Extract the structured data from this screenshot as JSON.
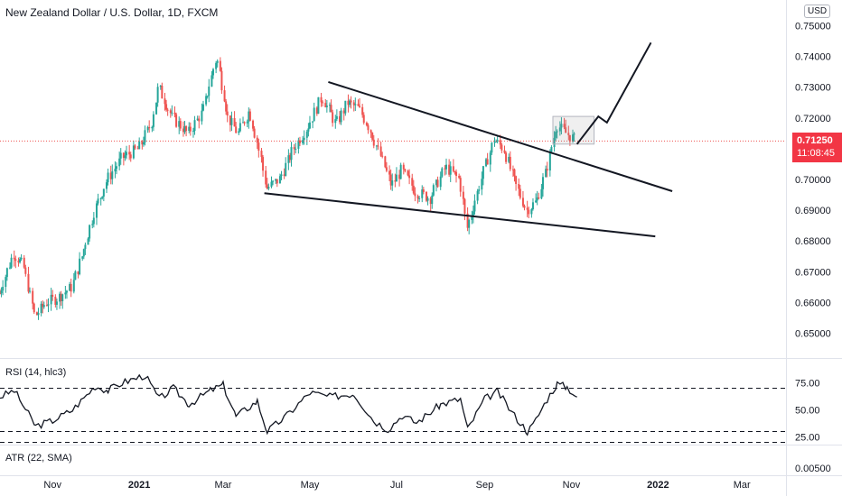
{
  "header": {
    "title": "New Zealand Dollar / U.S. Dollar, 1D, FXCM",
    "currency": "USD"
  },
  "current_price": {
    "price": "0.71250",
    "countdown": "11:08:45",
    "color": "#f23645"
  },
  "colors": {
    "up": "#26a69a",
    "down": "#ef5350",
    "line": "#131722",
    "price_line": "#ef5350"
  },
  "chart_data": [
    {
      "type": "candlestick",
      "title": "New Zealand Dollar / U.S. Dollar, 1D, FXCM",
      "y_ticks": [
        0.75,
        0.74,
        0.73,
        0.72,
        0.71,
        0.7,
        0.69,
        0.68,
        0.67,
        0.66,
        0.65
      ],
      "y_tick_labels": [
        "0.75000",
        "0.74000",
        "0.73000",
        "0.72000",
        "",
        "0.70000",
        "0.69000",
        "0.68000",
        "0.67000",
        "0.66000",
        "0.65000"
      ],
      "ylim": [
        0.6465,
        0.7525
      ],
      "x_ticks": [
        "Nov",
        "2021",
        "Mar",
        "May",
        "Jul",
        "Sep",
        "Nov",
        "2022",
        "Mar"
      ],
      "x_tick_dates": [
        "2020-11-01",
        "2021-01-01",
        "2021-03-01",
        "2021-05-01",
        "2021-07-01",
        "2021-09-01",
        "2021-11-01",
        "2022-01-01",
        "2022-03-01"
      ],
      "xlim": [
        "2020-09-25",
        "2022-04-01"
      ],
      "close_path": [
        [
          "2020-09-25",
          0.663
        ],
        [
          "2020-10-05",
          0.676
        ],
        [
          "2020-10-12",
          0.672
        ],
        [
          "2020-10-20",
          0.6555
        ],
        [
          "2020-10-28",
          0.66
        ],
        [
          "2020-11-05",
          0.6615
        ],
        [
          "2020-11-15",
          0.665
        ],
        [
          "2020-11-22",
          0.675
        ],
        [
          "2020-12-01",
          0.69
        ],
        [
          "2020-12-10",
          0.7
        ],
        [
          "2020-12-20",
          0.707
        ],
        [
          "2021-01-01",
          0.71
        ],
        [
          "2021-01-10",
          0.718
        ],
        [
          "2021-01-15",
          0.73
        ],
        [
          "2021-01-25",
          0.72
        ],
        [
          "2021-02-05",
          0.715
        ],
        [
          "2021-02-15",
          0.722
        ],
        [
          "2021-02-25",
          0.74
        ],
        [
          "2021-03-05",
          0.72
        ],
        [
          "2021-03-12",
          0.715
        ],
        [
          "2021-03-20",
          0.7225
        ],
        [
          "2021-03-28",
          0.707
        ],
        [
          "2021-04-01",
          0.697
        ],
        [
          "2021-04-10",
          0.7
        ],
        [
          "2021-04-20",
          0.71
        ],
        [
          "2021-05-01",
          0.718
        ],
        [
          "2021-05-10",
          0.727
        ],
        [
          "2021-05-20",
          0.718
        ],
        [
          "2021-05-28",
          0.725
        ],
        [
          "2021-06-05",
          0.723
        ],
        [
          "2021-06-12",
          0.717
        ],
        [
          "2021-06-20",
          0.708
        ],
        [
          "2021-06-28",
          0.698
        ],
        [
          "2021-07-05",
          0.703
        ],
        [
          "2021-07-15",
          0.696
        ],
        [
          "2021-07-25",
          0.694
        ],
        [
          "2021-08-05",
          0.704
        ],
        [
          "2021-08-15",
          0.7
        ],
        [
          "2021-08-20",
          0.684
        ],
        [
          "2021-08-25",
          0.692
        ],
        [
          "2021-09-01",
          0.703
        ],
        [
          "2021-09-08",
          0.713
        ],
        [
          "2021-09-15",
          0.71
        ],
        [
          "2021-09-22",
          0.7
        ],
        [
          "2021-10-01",
          0.69
        ],
        [
          "2021-10-08",
          0.693
        ],
        [
          "2021-10-15",
          0.703
        ],
        [
          "2021-10-22",
          0.718
        ],
        [
          "2021-10-29",
          0.715
        ],
        [
          "2021-11-05",
          0.7125
        ]
      ],
      "trendlines": [
        {
          "from": [
            "2021-05-14",
            0.7317
          ],
          "to": [
            "2022-01-11",
            0.6962
          ]
        },
        {
          "from": [
            "2021-03-30",
            0.6955
          ],
          "to": [
            "2021-12-30",
            0.6815
          ]
        },
        {
          "from": [
            "2021-11-05",
            0.7115
          ],
          "to": [
            "2021-11-20",
            0.7205
          ],
          "then": [
            [
              "2021-11-26",
              0.7185
            ],
            [
              "2021-12-27",
              0.7445
            ]
          ]
        }
      ],
      "consolidation_box": {
        "from": [
          "2021-10-19",
          0.7205
        ],
        "to": [
          "2021-11-17",
          0.7115
        ]
      },
      "last_price": 0.7125
    },
    {
      "type": "line",
      "title": "RSI (14, hlc3)",
      "y_ticks": [
        75,
        50,
        25
      ],
      "y_tick_labels": [
        "75.00",
        "50.00",
        "25.00"
      ],
      "levels": [
        70,
        30,
        20
      ],
      "ylim": [
        10,
        90
      ],
      "x": [
        "2020-09-25",
        "2020-10-05",
        "2020-10-20",
        "2020-11-01",
        "2020-11-15",
        "2020-12-01",
        "2020-12-10",
        "2020-12-20",
        "2021-01-05",
        "2021-01-15",
        "2021-01-25",
        "2021-02-05",
        "2021-02-20",
        "2021-03-01",
        "2021-03-10",
        "2021-03-25",
        "2021-04-01",
        "2021-04-15",
        "2021-05-01",
        "2021-05-15",
        "2021-06-01",
        "2021-06-15",
        "2021-06-25",
        "2021-07-05",
        "2021-07-15",
        "2021-08-01",
        "2021-08-15",
        "2021-08-20",
        "2021-09-01",
        "2021-09-10",
        "2021-09-20",
        "2021-10-01",
        "2021-10-05",
        "2021-10-15",
        "2021-10-22",
        "2021-10-29",
        "2021-11-05"
      ],
      "values": [
        62,
        68,
        35,
        40,
        50,
        72,
        68,
        75,
        82,
        60,
        70,
        55,
        68,
        73,
        44,
        58,
        30,
        45,
        66,
        62,
        65,
        40,
        32,
        45,
        38,
        55,
        60,
        32,
        60,
        67,
        48,
        30,
        36,
        60,
        74,
        71,
        62
      ]
    },
    {
      "type": "line",
      "title": "ATR (22, SMA)",
      "y_tick_labels": [
        "0.00500"
      ]
    }
  ]
}
